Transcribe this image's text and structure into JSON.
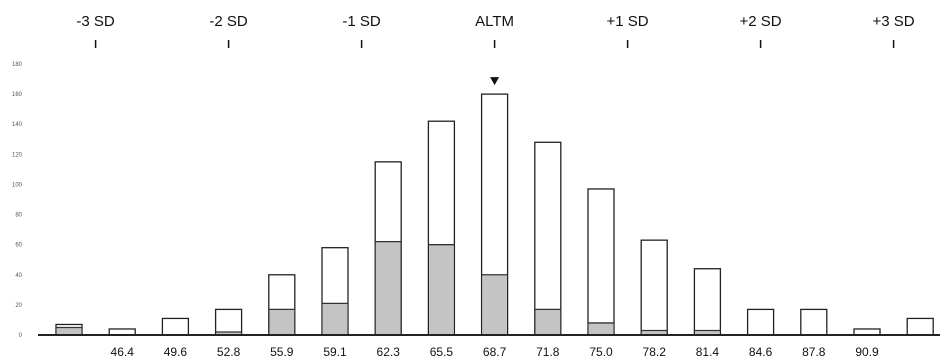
{
  "chart_data": {
    "type": "bar",
    "stacked": false,
    "categories": [
      "",
      "46.4",
      "49.6",
      "52.8",
      "55.9",
      "59.1",
      "62.3",
      "65.5",
      "68.7",
      "71.8",
      "75.0",
      "78.2",
      "81.4",
      "84.6",
      "87.8",
      "90.9",
      ""
    ],
    "series": [
      {
        "values": [
          7,
          4,
          11,
          17,
          40,
          58,
          115,
          142,
          160,
          128,
          97,
          63,
          44,
          17,
          17,
          4,
          11
        ],
        "color": "#ffffff"
      },
      {
        "values": [
          5,
          0,
          0,
          2,
          17,
          21,
          62,
          60,
          40,
          17,
          8,
          3,
          3,
          0,
          0,
          0,
          0
        ],
        "color": "#c4c4c4"
      }
    ],
    "sd_markers": [
      {
        "label": "-3 SD",
        "category_position": 0.5
      },
      {
        "label": "-2 SD",
        "category_position": 3
      },
      {
        "label": "-1 SD",
        "category_position": 5.5
      },
      {
        "label": "ALTM",
        "category_position": 8
      },
      {
        "label": "+1 SD",
        "category_position": 10.5
      },
      {
        "label": "+2 SD",
        "category_position": 13
      },
      {
        "label": "+3 SD",
        "category_position": 15.5
      }
    ],
    "mean_marker_category_index": 8,
    "y_ticks": [
      0,
      20,
      40,
      60,
      80,
      100,
      120,
      140,
      160,
      180
    ],
    "y_tick_labels": [
      "0",
      "20",
      "40",
      "60",
      "80",
      "100",
      "120",
      "140",
      "160",
      "180"
    ],
    "ylim": [
      0,
      180
    ],
    "title": "",
    "xlabel": "",
    "ylabel": ""
  }
}
